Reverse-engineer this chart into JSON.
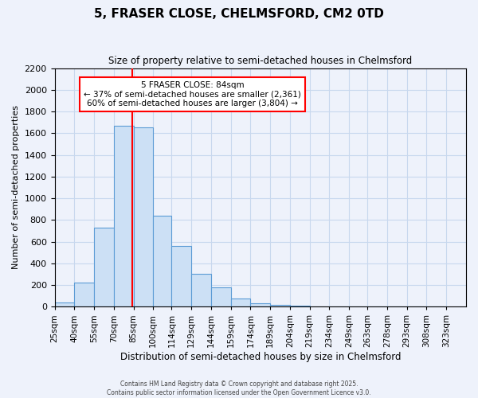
{
  "title1": "5, FRASER CLOSE, CHELMSFORD, CM2 0TD",
  "title2": "Size of property relative to semi-detached houses in Chelmsford",
  "xlabel": "Distribution of semi-detached houses by size in Chelmsford",
  "ylabel": "Number of semi-detached properties",
  "bar_values": [
    40,
    225,
    730,
    1670,
    1650,
    840,
    560,
    300,
    180,
    75,
    35,
    20,
    10,
    5,
    3,
    2,
    1,
    1,
    0,
    0
  ],
  "bin_left_edges": [
    25,
    40,
    55,
    70,
    85,
    100,
    114,
    129,
    144,
    159,
    174,
    189,
    204,
    219,
    234,
    249,
    263,
    278,
    293,
    308
  ],
  "bin_labels": [
    "25sqm",
    "40sqm",
    "55sqm",
    "70sqm",
    "85sqm",
    "100sqm",
    "114sqm",
    "129sqm",
    "144sqm",
    "159sqm",
    "174sqm",
    "189sqm",
    "204sqm",
    "219sqm",
    "234sqm",
    "249sqm",
    "263sqm",
    "278sqm",
    "293sqm",
    "308sqm",
    "323sqm"
  ],
  "bar_widths": [
    15,
    15,
    15,
    15,
    15,
    14,
    15,
    15,
    15,
    15,
    15,
    15,
    15,
    15,
    15,
    14,
    15,
    15,
    15,
    15
  ],
  "bar_color": "#cce0f5",
  "bar_edge_color": "#5b9bd5",
  "grid_color": "#c8d8ee",
  "bg_color": "#eef2fb",
  "vline_x": 84,
  "vline_color": "red",
  "annotation_title": "5 FRASER CLOSE: 84sqm",
  "annotation_line1": "← 37% of semi-detached houses are smaller (2,361)",
  "annotation_line2": "60% of semi-detached houses are larger (3,804) →",
  "annotation_box_color": "white",
  "annotation_box_edge": "red",
  "ylim": [
    0,
    2200
  ],
  "yticks": [
    0,
    200,
    400,
    600,
    800,
    1000,
    1200,
    1400,
    1600,
    1800,
    2000,
    2200
  ],
  "footnote1": "Contains HM Land Registry data © Crown copyright and database right 2025.",
  "footnote2": "Contains public sector information licensed under the Open Government Licence v3.0."
}
